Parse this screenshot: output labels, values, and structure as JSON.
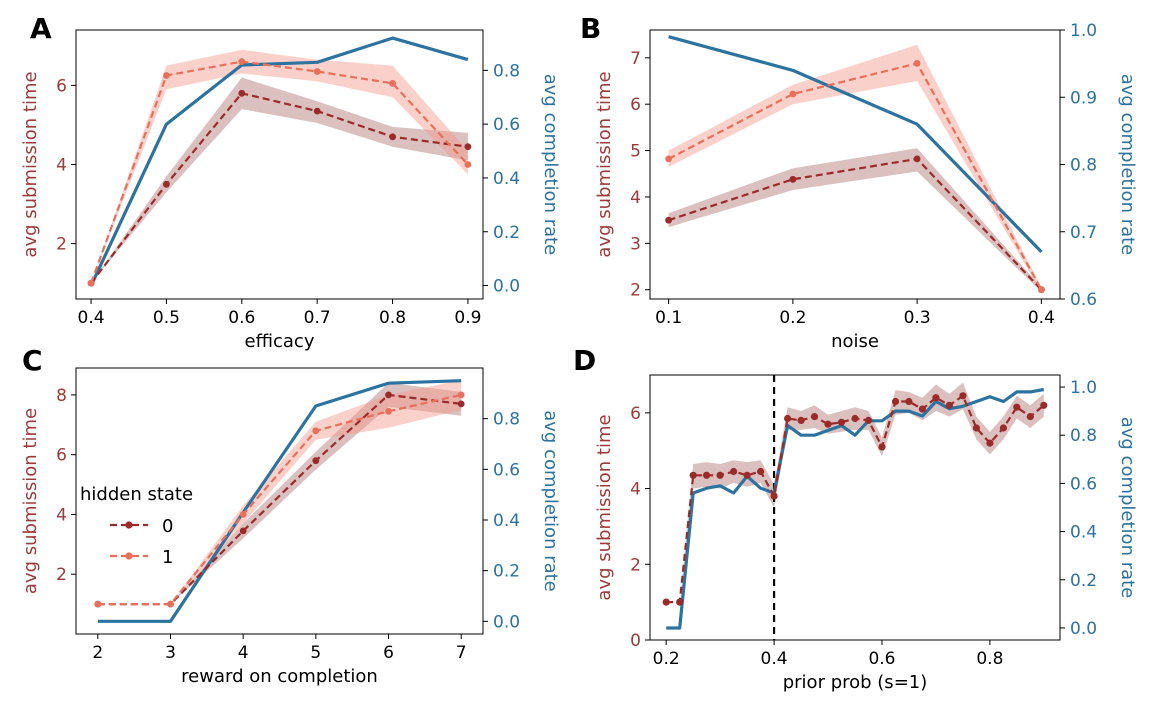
{
  "colors": {
    "state0": "#9b2a2a",
    "state0_band": "#8e3a3a",
    "state1": "#e8705a",
    "state1_band": "#f49a8a",
    "completion": "#2c73a0",
    "left_axis_text": "#9e3a3a",
    "right_axis_text": "#2c73a0",
    "vline": "#000000"
  },
  "legend": {
    "title": "hidden state",
    "entries": [
      "0",
      "1"
    ]
  },
  "chart_data": [
    {
      "panel": "A",
      "type": "line",
      "xlabel": "efficacy",
      "ylabel_left": "avg submission time",
      "ylabel_right": "avg completion rate",
      "xlim": [
        0.38,
        0.92
      ],
      "ylim_left": [
        0.6,
        7.4
      ],
      "ylim_right": [
        -0.05,
        0.95
      ],
      "xticks": [
        "0.4",
        "0.5",
        "0.6",
        "0.7",
        "0.8",
        "0.9"
      ],
      "xtick_values": [
        0.4,
        0.5,
        0.6,
        0.7,
        0.8,
        0.9
      ],
      "yticks_left": [
        "2",
        "4",
        "6"
      ],
      "ytick_left_values": [
        2,
        4,
        6
      ],
      "yticks_right": [
        "0.0",
        "0.2",
        "0.4",
        "0.6",
        "0.8"
      ],
      "ytick_right_values": [
        0.0,
        0.2,
        0.4,
        0.6,
        0.8
      ],
      "series": [
        {
          "name": "0",
          "axis": "left",
          "style": "state0",
          "x": [
            0.4,
            0.5,
            0.6,
            0.7,
            0.8,
            0.9
          ],
          "y": [
            1.0,
            3.5,
            5.8,
            5.35,
            4.7,
            4.45
          ],
          "band_low": [
            1.0,
            3.3,
            5.4,
            5.05,
            4.45,
            4.1
          ],
          "band_high": [
            1.0,
            3.7,
            6.2,
            5.6,
            4.95,
            4.8
          ]
        },
        {
          "name": "1",
          "axis": "left",
          "style": "state1",
          "x": [
            0.4,
            0.5,
            0.6,
            0.7,
            0.8,
            0.9
          ],
          "y": [
            1.0,
            6.25,
            6.6,
            6.35,
            6.05,
            4.0
          ],
          "band_low": [
            1.0,
            5.9,
            6.3,
            6.1,
            5.7,
            3.75
          ],
          "band_high": [
            1.0,
            6.5,
            6.9,
            6.65,
            6.5,
            4.35
          ]
        },
        {
          "name": "completion",
          "axis": "right",
          "style": "completion",
          "x": [
            0.4,
            0.5,
            0.6,
            0.7,
            0.8,
            0.9
          ],
          "y": [
            0.0,
            0.6,
            0.82,
            0.83,
            0.92,
            0.84
          ]
        }
      ]
    },
    {
      "panel": "B",
      "type": "line",
      "xlabel": "noise",
      "ylabel_left": "avg submission time",
      "ylabel_right": "avg completion rate",
      "xlim": [
        0.085,
        0.415
      ],
      "ylim_left": [
        1.8,
        7.6
      ],
      "ylim_right": [
        0.6,
        1.0
      ],
      "xticks": [
        "0.1",
        "0.2",
        "0.3",
        "0.4"
      ],
      "xtick_values": [
        0.1,
        0.2,
        0.3,
        0.4
      ],
      "yticks_left": [
        "2",
        "3",
        "4",
        "5",
        "6",
        "7"
      ],
      "ytick_left_values": [
        2,
        3,
        4,
        5,
        6,
        7
      ],
      "yticks_right": [
        "0.6",
        "0.7",
        "0.8",
        "0.9",
        "1.0"
      ],
      "ytick_right_values": [
        0.6,
        0.7,
        0.8,
        0.9,
        1.0
      ],
      "series": [
        {
          "name": "0",
          "axis": "left",
          "style": "state0",
          "x": [
            0.1,
            0.2,
            0.3,
            0.4
          ],
          "y": [
            3.5,
            4.38,
            4.82,
            2.0
          ],
          "band_low": [
            3.35,
            4.15,
            4.55,
            1.95
          ],
          "band_high": [
            3.65,
            4.62,
            5.05,
            2.05
          ]
        },
        {
          "name": "1",
          "axis": "left",
          "style": "state1",
          "x": [
            0.1,
            0.2,
            0.3,
            0.4
          ],
          "y": [
            4.82,
            6.22,
            6.88,
            2.0
          ],
          "band_low": [
            4.65,
            6.0,
            6.5,
            1.95
          ],
          "band_high": [
            5.0,
            6.42,
            7.28,
            2.05
          ]
        },
        {
          "name": "completion",
          "axis": "right",
          "style": "completion",
          "x": [
            0.1,
            0.2,
            0.3,
            0.4
          ],
          "y": [
            0.99,
            0.94,
            0.86,
            0.67
          ]
        }
      ]
    },
    {
      "panel": "C",
      "type": "line",
      "xlabel": "reward on completion",
      "ylabel_left": "avg submission time",
      "ylabel_right": "avg completion rate",
      "xlim": [
        1.7,
        7.3
      ],
      "ylim_left": [
        0.0,
        8.9
      ],
      "ylim_right": [
        -0.05,
        1.0
      ],
      "xticks": [
        "2",
        "3",
        "4",
        "5",
        "6",
        "7"
      ],
      "xtick_values": [
        2,
        3,
        4,
        5,
        6,
        7
      ],
      "yticks_left": [
        "2",
        "4",
        "6",
        "8"
      ],
      "ytick_left_values": [
        2,
        4,
        6,
        8
      ],
      "yticks_right": [
        "0.0",
        "0.2",
        "0.4",
        "0.6",
        "0.8"
      ],
      "ytick_right_values": [
        0.0,
        0.2,
        0.4,
        0.6,
        0.8
      ],
      "legend_panel": true,
      "series": [
        {
          "name": "0",
          "axis": "left",
          "style": "state0",
          "x": [
            2,
            3,
            4,
            5,
            6,
            7
          ],
          "y": [
            1.0,
            1.0,
            3.45,
            5.8,
            8.0,
            7.7
          ],
          "band_low": [
            1.0,
            1.0,
            3.2,
            5.5,
            7.6,
            7.3
          ],
          "band_high": [
            1.0,
            1.0,
            3.7,
            6.1,
            8.4,
            8.1
          ]
        },
        {
          "name": "1",
          "axis": "left",
          "style": "state1",
          "x": [
            2,
            3,
            4,
            5,
            6,
            7
          ],
          "y": [
            1.0,
            1.0,
            4.0,
            6.8,
            7.45,
            8.0
          ],
          "band_low": [
            1.0,
            1.0,
            3.7,
            6.5,
            6.9,
            7.5
          ],
          "band_high": [
            1.0,
            1.0,
            4.3,
            7.1,
            8.0,
            8.5
          ]
        },
        {
          "name": "completion",
          "axis": "right",
          "style": "completion",
          "x": [
            2,
            3,
            4,
            5,
            6,
            7
          ],
          "y": [
            0.0,
            0.0,
            0.43,
            0.85,
            0.94,
            0.95
          ]
        }
      ]
    },
    {
      "panel": "D",
      "type": "line",
      "xlabel": "prior prob (s=1)",
      "ylabel_left": "avg submission time",
      "ylabel_right": "avg completion rate",
      "xlim": [
        0.17,
        0.93
      ],
      "ylim_left": [
        0.0,
        7.0
      ],
      "ylim_right": [
        -0.05,
        1.05
      ],
      "xticks": [
        "0.2",
        "0.4",
        "0.6",
        "0.8"
      ],
      "xtick_values": [
        0.2,
        0.4,
        0.6,
        0.8
      ],
      "yticks_left": [
        "0",
        "2",
        "4",
        "6"
      ],
      "ytick_left_values": [
        0,
        2,
        4,
        6
      ],
      "yticks_right": [
        "0.0",
        "0.2",
        "0.4",
        "0.6",
        "0.8",
        "1.0"
      ],
      "ytick_right_values": [
        0.0,
        0.2,
        0.4,
        0.6,
        0.8,
        1.0
      ],
      "vline_x": 0.4,
      "series": [
        {
          "name": "0",
          "axis": "left",
          "style": "state0",
          "band_only_alpha": true,
          "x": [
            0.2,
            0.225,
            0.25,
            0.275,
            0.3,
            0.325,
            0.35,
            0.375,
            0.4,
            0.425,
            0.45,
            0.475,
            0.5,
            0.525,
            0.55,
            0.575,
            0.6,
            0.625,
            0.65,
            0.675,
            0.7,
            0.725,
            0.75,
            0.775,
            0.8,
            0.825,
            0.85,
            0.875,
            0.9
          ],
          "y": [
            1.0,
            1.0,
            4.35,
            4.35,
            4.35,
            4.45,
            4.35,
            4.45,
            3.8,
            5.85,
            5.8,
            5.9,
            5.7,
            5.75,
            5.85,
            5.8,
            5.1,
            6.3,
            6.3,
            6.1,
            6.4,
            6.2,
            6.45,
            5.6,
            5.2,
            5.6,
            6.15,
            5.9,
            6.2
          ],
          "band_low": [
            1.0,
            1.0,
            4.0,
            4.05,
            4.0,
            4.15,
            4.05,
            4.15,
            3.5,
            5.55,
            5.55,
            5.6,
            5.45,
            5.5,
            5.55,
            5.55,
            4.85,
            5.95,
            6.0,
            5.8,
            6.05,
            5.9,
            6.1,
            5.3,
            4.9,
            5.3,
            5.85,
            5.6,
            5.9
          ],
          "band_high": [
            1.0,
            1.0,
            4.65,
            4.7,
            4.65,
            4.75,
            4.7,
            4.75,
            4.1,
            6.15,
            6.05,
            6.2,
            5.95,
            6.05,
            6.15,
            6.05,
            5.35,
            6.6,
            6.55,
            6.4,
            6.75,
            6.5,
            6.8,
            5.9,
            5.5,
            5.9,
            6.45,
            6.2,
            6.5
          ]
        },
        {
          "name": "completion",
          "axis": "right",
          "style": "completion",
          "x": [
            0.2,
            0.225,
            0.25,
            0.275,
            0.3,
            0.325,
            0.35,
            0.375,
            0.4,
            0.425,
            0.45,
            0.475,
            0.5,
            0.525,
            0.55,
            0.575,
            0.6,
            0.625,
            0.65,
            0.675,
            0.7,
            0.725,
            0.75,
            0.775,
            0.8,
            0.825,
            0.85,
            0.875,
            0.9
          ],
          "y": [
            0.0,
            0.0,
            0.56,
            0.58,
            0.59,
            0.56,
            0.63,
            0.58,
            0.56,
            0.84,
            0.8,
            0.8,
            0.82,
            0.84,
            0.8,
            0.86,
            0.86,
            0.9,
            0.9,
            0.88,
            0.94,
            0.91,
            0.92,
            0.94,
            0.96,
            0.94,
            0.98,
            0.98,
            0.99
          ]
        }
      ]
    }
  ]
}
